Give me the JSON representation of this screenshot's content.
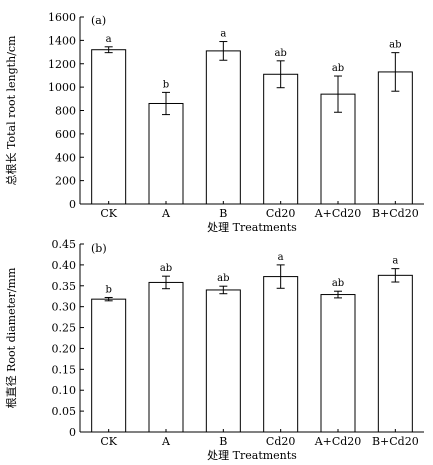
{
  "chart_data": [
    {
      "type": "bar",
      "panel_label": "(a)",
      "categories": [
        "CK",
        "A",
        "B",
        "Cd20",
        "A+Cd20",
        "B+Cd20"
      ],
      "values": [
        1320,
        860,
        1310,
        1110,
        940,
        1130
      ],
      "errors": [
        25,
        95,
        80,
        115,
        155,
        165
      ],
      "significance": [
        "a",
        "b",
        "a",
        "ab",
        "ab",
        "ab"
      ],
      "ylabel": "总根长 Total root length/cm",
      "xlabel": "处理 Treatments",
      "ylim": [
        0,
        1600
      ],
      "yticks": [
        0,
        200,
        400,
        600,
        800,
        1000,
        1200,
        1400,
        1600
      ],
      "ytick_labels": [
        "0",
        "200",
        "400",
        "600",
        "800",
        "1000",
        "1200",
        "1400",
        "1600"
      ],
      "grid": false
    },
    {
      "type": "bar",
      "panel_label": "(b)",
      "categories": [
        "CK",
        "A",
        "B",
        "Cd20",
        "A+Cd20",
        "B+Cd20"
      ],
      "values": [
        0.318,
        0.358,
        0.34,
        0.372,
        0.329,
        0.375
      ],
      "errors": [
        0.004,
        0.015,
        0.009,
        0.028,
        0.008,
        0.016
      ],
      "significance": [
        "b",
        "ab",
        "ab",
        "a",
        "ab",
        "a"
      ],
      "ylabel": "根直径 Root diameter/mm",
      "xlabel": "处理 Treatments",
      "ylim": [
        0,
        0.45
      ],
      "yticks": [
        0,
        0.05,
        0.1,
        0.15,
        0.2,
        0.25,
        0.3,
        0.35,
        0.4,
        0.45
      ],
      "ytick_labels": [
        "0",
        "0.05",
        "0.10",
        "0.15",
        "0.20",
        "0.25",
        "0.30",
        "0.35",
        "0.40",
        "0.45"
      ],
      "grid": false
    }
  ]
}
